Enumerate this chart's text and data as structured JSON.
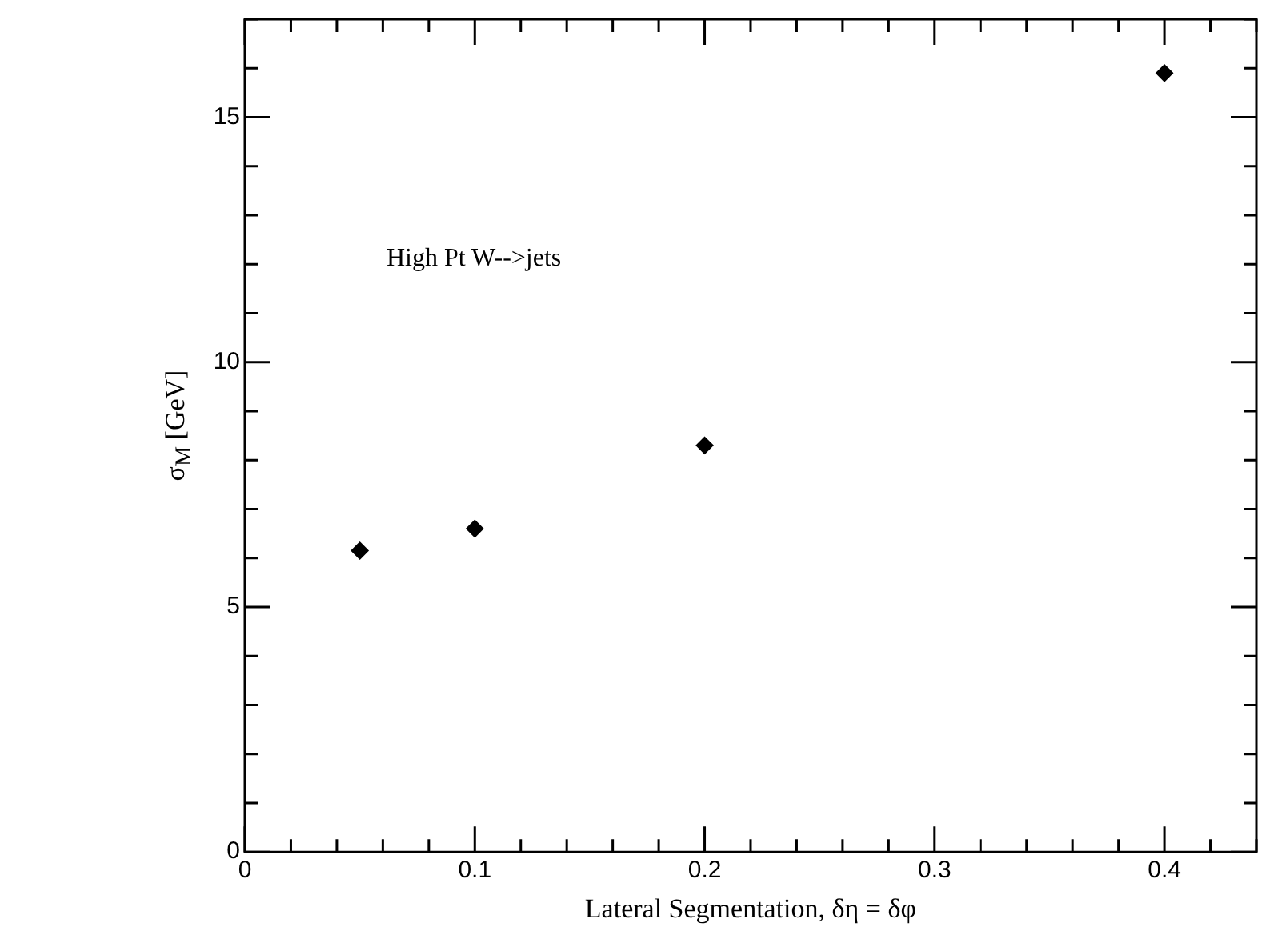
{
  "chart_data": {
    "type": "scatter",
    "xlabel": "Lateral Segmentation, δη = δφ",
    "ylabel": "σ$_{M}$  [GeV]",
    "annotations": [
      "High Pt W-->jets"
    ],
    "x": [
      0.05,
      0.1,
      0.2,
      0.4
    ],
    "series": [
      {
        "color": "#000000",
        "values": [
          6.15,
          6.6,
          8.3,
          15.9
        ]
      }
    ],
    "marker": "diamond",
    "xlim": [
      0,
      0.44
    ],
    "xticks": [
      0,
      {
        "value": 0.02,
        "label": null
      },
      {
        "value": 0.04,
        "label": null
      },
      {
        "value": 0.06,
        "label": null
      },
      {
        "value": 0.08,
        "label": null
      },
      0.1,
      {
        "value": 0.12,
        "label": null
      },
      {
        "value": 0.14,
        "label": null
      },
      {
        "value": 0.16,
        "label": null
      },
      {
        "value": 0.18,
        "label": null
      },
      0.2,
      {
        "value": 0.22,
        "label": null
      },
      {
        "value": 0.24,
        "label": null
      },
      {
        "value": 0.26,
        "label": null
      },
      {
        "value": 0.28,
        "label": null
      },
      0.3,
      {
        "value": 0.32,
        "label": null
      },
      {
        "value": 0.34,
        "label": null
      },
      {
        "value": 0.36,
        "label": null
      },
      {
        "value": 0.38,
        "label": null
      },
      0.4,
      {
        "value": 0.42,
        "label": null
      },
      {
        "value": 0.44,
        "label": null
      }
    ],
    "ylim": [
      0,
      17
    ],
    "yticks": [
      0,
      {
        "value": 1,
        "label": null
      },
      {
        "value": 2,
        "label": null
      },
      {
        "value": 3,
        "label": null
      },
      {
        "value": 4,
        "label": null
      },
      5,
      {
        "value": 6,
        "label": null
      },
      {
        "value": 7,
        "label": null
      },
      {
        "value": 8,
        "label": null
      },
      {
        "value": 9,
        "label": null
      },
      10,
      {
        "value": 11,
        "label": null
      },
      {
        "value": 12,
        "label": null
      },
      {
        "value": 13,
        "label": null
      },
      {
        "value": 14,
        "label": null
      },
      15,
      {
        "value": 16,
        "label": null
      },
      {
        "value": 17,
        "label": null
      }
    ],
    "grid": false,
    "legend": false
  }
}
